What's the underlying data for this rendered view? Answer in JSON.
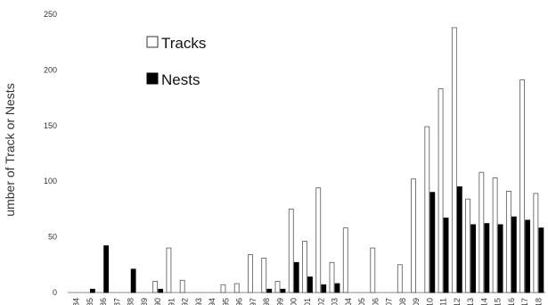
{
  "chart_data": {
    "type": "bar",
    "ylabel": "umber of Track or Nests",
    "ylim": [
      0,
      250
    ],
    "yticks": [
      0,
      50,
      100,
      150,
      200,
      250
    ],
    "legend_position": "top-left",
    "categories": [
      "1984",
      "1985",
      "1986",
      "1987",
      "1988",
      "1989",
      "1990",
      "1991",
      "1992",
      "1993",
      "1994",
      "1995",
      "1996",
      "1997",
      "1998",
      "1999",
      "2000",
      "2001",
      "2002",
      "2003",
      "2004",
      "2005",
      "2006",
      "2007",
      "2008",
      "2009",
      "2010",
      "2011",
      "2012",
      "2013",
      "2014",
      "2015",
      "2016",
      "2017",
      "2018"
    ],
    "series": [
      {
        "name": "Tracks",
        "fill": "#ffffff",
        "stroke": "#555555",
        "values": [
          0,
          0,
          0,
          0,
          0,
          0,
          10,
          40,
          11,
          0,
          0,
          7,
          8,
          34,
          31,
          10,
          75,
          46,
          94,
          27,
          58,
          0,
          40,
          0,
          25,
          102,
          149,
          183,
          238,
          84,
          108,
          103,
          91,
          191,
          89
        ]
      },
      {
        "name": "Nests",
        "fill": "#000000",
        "stroke": "#000000",
        "values": [
          0,
          3,
          42,
          0,
          21,
          0,
          3,
          0,
          0,
          0,
          0,
          0,
          0,
          0,
          3,
          3,
          27,
          14,
          7,
          8,
          0,
          0,
          0,
          0,
          0,
          0,
          90,
          67,
          95,
          61,
          62,
          61,
          68,
          65,
          58
        ]
      }
    ]
  }
}
